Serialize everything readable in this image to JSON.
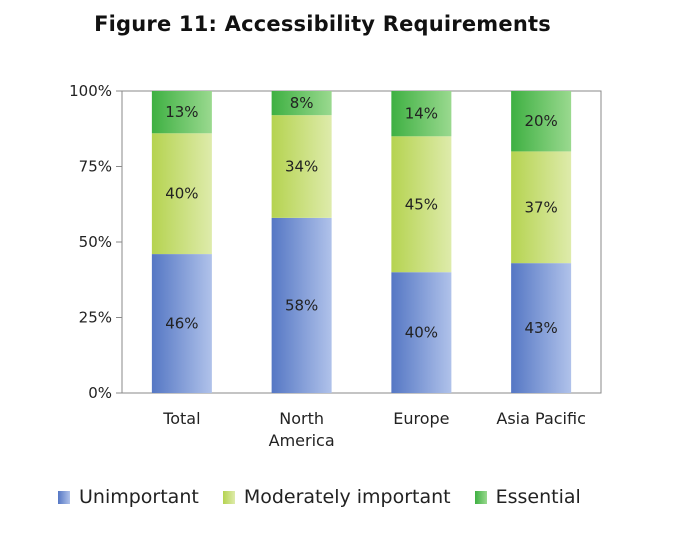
{
  "figure": {
    "title": "Figure 11: Accessibility Requirements"
  },
  "chart_data": {
    "type": "bar",
    "stacked": true,
    "percent": true,
    "title": "Figure 11: Accessibility Requirements",
    "xlabel": "",
    "ylabel": "",
    "ylim": [
      0,
      100
    ],
    "yticks": [
      "0%",
      "25%",
      "50%",
      "75%",
      "100%"
    ],
    "categories": [
      [
        "Total"
      ],
      [
        "North",
        "America"
      ],
      [
        "Europe"
      ],
      [
        "Asia Pacific"
      ]
    ],
    "series": [
      {
        "name": "Unimportant",
        "values": [
          46,
          58,
          40,
          43
        ],
        "labels": [
          "46%",
          "58%",
          "40%",
          "43%"
        ],
        "color": "#7f9ad6",
        "color_dark": "#5577c4",
        "color_light": "#b0c2ea"
      },
      {
        "name": "Moderately important",
        "values": [
          40,
          34,
          45,
          37
        ],
        "labels": [
          "40%",
          "34%",
          "45%",
          "37%"
        ],
        "color": "#c9e07a",
        "color_dark": "#b5d350",
        "color_light": "#deebab"
      },
      {
        "name": "Essential",
        "values": [
          13,
          8,
          14,
          20
        ],
        "labels": [
          "13%",
          "8%",
          "14%",
          "20%"
        ],
        "color": "#6cc76a",
        "color_dark": "#3eb042",
        "color_light": "#9ad98f"
      }
    ],
    "legend_position": "bottom"
  }
}
